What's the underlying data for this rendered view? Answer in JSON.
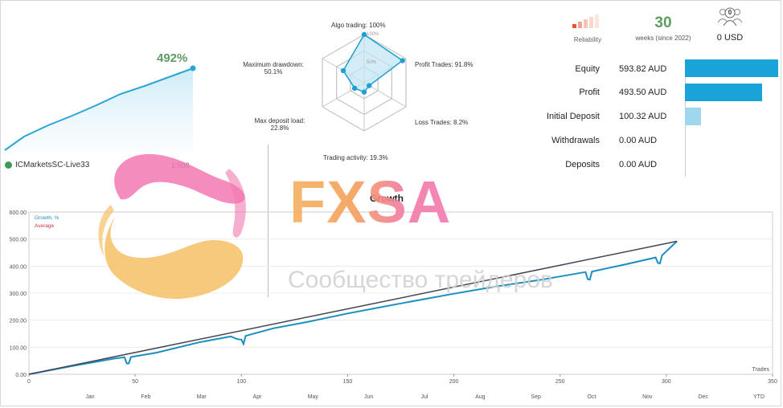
{
  "mini_chart": {
    "percent": "492%",
    "account": "ICMarketsSC-Live33",
    "leverage": "1:500"
  },
  "radar": {
    "center_ticks": [
      "100%",
      "50%"
    ],
    "labels": {
      "algo": "Algo trading: 100%",
      "profit_trades": "Profit Trades: 91.8%",
      "loss_trades": "Loss Trades: 8.2%",
      "activity": "Trading activity: 19.3%",
      "deposit_load_1": "Max deposit load:",
      "deposit_load_2": "22.8%",
      "drawdown_1": "Maximum drawdown:",
      "drawdown_2": "50.1%"
    },
    "values": [
      1.0,
      0.918,
      0.082,
      0.193,
      0.228,
      0.501
    ]
  },
  "header_stats": {
    "reliability_label": "Reliability",
    "weeks_value": "30",
    "weeks_label": "weeks (since 2022)",
    "subscribers_count": "0",
    "subscribers_price": "0 USD"
  },
  "stats": [
    {
      "label": "Equity",
      "value": "593.82 AUD",
      "fraction": 1.0,
      "color": "#1aa3d9"
    },
    {
      "label": "Profit",
      "value": "493.50 AUD",
      "fraction": 0.83,
      "color": "#1aa3d9"
    },
    {
      "label": "Initial Deposit",
      "value": "100.32 AUD",
      "fraction": 0.17,
      "color": "#9fd8ee"
    },
    {
      "label": "Withdrawals",
      "value": "0.00 AUD",
      "fraction": 0,
      "color": "#1aa3d9"
    },
    {
      "label": "Deposits",
      "value": "0.00 AUD",
      "fraction": 0,
      "color": "#1aa3d9"
    }
  ],
  "watermark": {
    "brand": "FXSA",
    "tagline": "Сообщество трейдеров"
  },
  "chart_data": {
    "type": "line",
    "title": "Growth",
    "xlabel": "Trades",
    "ylabel": "",
    "xlim": [
      0,
      350
    ],
    "ylim": [
      0,
      600
    ],
    "y_ticks": [
      "0.00",
      "100.00",
      "200.00",
      "300.00",
      "400.00",
      "500.00",
      "600.00"
    ],
    "x_ticks": [
      "0",
      "50",
      "100",
      "150",
      "200",
      "250",
      "300",
      "350"
    ],
    "months": [
      "Jan",
      "Feb",
      "Mar",
      "Apr",
      "May",
      "Jun",
      "Jul",
      "Aug",
      "Sep",
      "Oct",
      "Nov",
      "Dec",
      "YTD"
    ],
    "series": [
      {
        "name": "Growth, %",
        "color": "#1a8fbf",
        "x": [
          0,
          20,
          40,
          45,
          46,
          47,
          48,
          60,
          80,
          95,
          98,
          100,
          101,
          102,
          115,
          130,
          150,
          175,
          200,
          220,
          240,
          262,
          263,
          264,
          265,
          280,
          295,
          296,
          297,
          298,
          305
        ],
        "y": [
          0,
          30,
          58,
          63,
          40,
          40,
          64,
          80,
          118,
          140,
          130,
          128,
          112,
          142,
          170,
          192,
          225,
          262,
          298,
          325,
          348,
          378,
          352,
          350,
          380,
          405,
          432,
          412,
          410,
          440,
          492
        ]
      },
      {
        "name": "Average",
        "color": "#444455",
        "x": [
          0,
          305
        ],
        "y": [
          0,
          492
        ]
      }
    ]
  }
}
